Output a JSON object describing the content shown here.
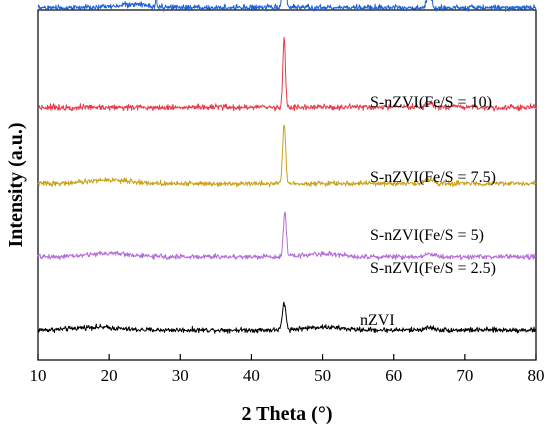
{
  "chart_data": {
    "type": "line",
    "title": "",
    "xlabel": "2 Theta (°)",
    "ylabel": "Intensity (a.u.)",
    "xlim": [
      10,
      80
    ],
    "xticks": [
      10,
      20,
      30,
      40,
      50,
      60,
      70,
      80
    ],
    "y_ticks_shown": false,
    "grid": false,
    "legend": "inline labels above each trace",
    "series": [
      {
        "name": "nZVI",
        "color": "#000000",
        "baseline": 0.0,
        "noise": 0.012,
        "peaks": [
          {
            "x": 44.6,
            "height": 0.09,
            "width": 0.35
          },
          {
            "x": 18.0,
            "height": 0.01,
            "width": 4.0
          },
          {
            "x": 50.0,
            "height": 0.01,
            "width": 3.5
          },
          {
            "x": 65.0,
            "height": 0.008,
            "width": 1.0
          }
        ]
      },
      {
        "name": "S-nZVI(Fe/S = 2.5)",
        "color": "#b36fd8",
        "baseline": 0.25,
        "noise": 0.012,
        "peaks": [
          {
            "x": 44.7,
            "height": 0.15,
            "width": 0.3
          },
          {
            "x": 20.0,
            "height": 0.012,
            "width": 4.0
          },
          {
            "x": 50.0,
            "height": 0.01,
            "width": 3.5
          },
          {
            "x": 65.0,
            "height": 0.01,
            "width": 1.0
          }
        ]
      },
      {
        "name": "S-nZVI(Fe/S = 5)",
        "color": "#c9a21b",
        "baseline": 0.5,
        "noise": 0.012,
        "peaks": [
          {
            "x": 44.6,
            "height": 0.2,
            "width": 0.3
          },
          {
            "x": 20.0,
            "height": 0.012,
            "width": 4.0
          },
          {
            "x": 65.0,
            "height": 0.015,
            "width": 0.8
          }
        ]
      },
      {
        "name": "S-nZVI(Fe/S = 7.5)",
        "color": "#e83a4a",
        "baseline": 0.76,
        "noise": 0.014,
        "peaks": [
          {
            "x": 44.6,
            "height": 0.24,
            "width": 0.25
          },
          {
            "x": 65.0,
            "height": 0.012,
            "width": 0.8
          }
        ]
      },
      {
        "name": "S-nZVI(Fe/S = 10)",
        "color": "#1f62d3",
        "baseline": 1.1,
        "noise": 0.014,
        "peaks": [
          {
            "x": 44.6,
            "height": 0.58,
            "width": 0.25
          },
          {
            "x": 26.6,
            "height": 0.07,
            "width": 0.08
          },
          {
            "x": 65.0,
            "height": 0.05,
            "width": 0.45
          },
          {
            "x": 23.0,
            "height": 0.012,
            "width": 3.0
          }
        ]
      }
    ]
  }
}
